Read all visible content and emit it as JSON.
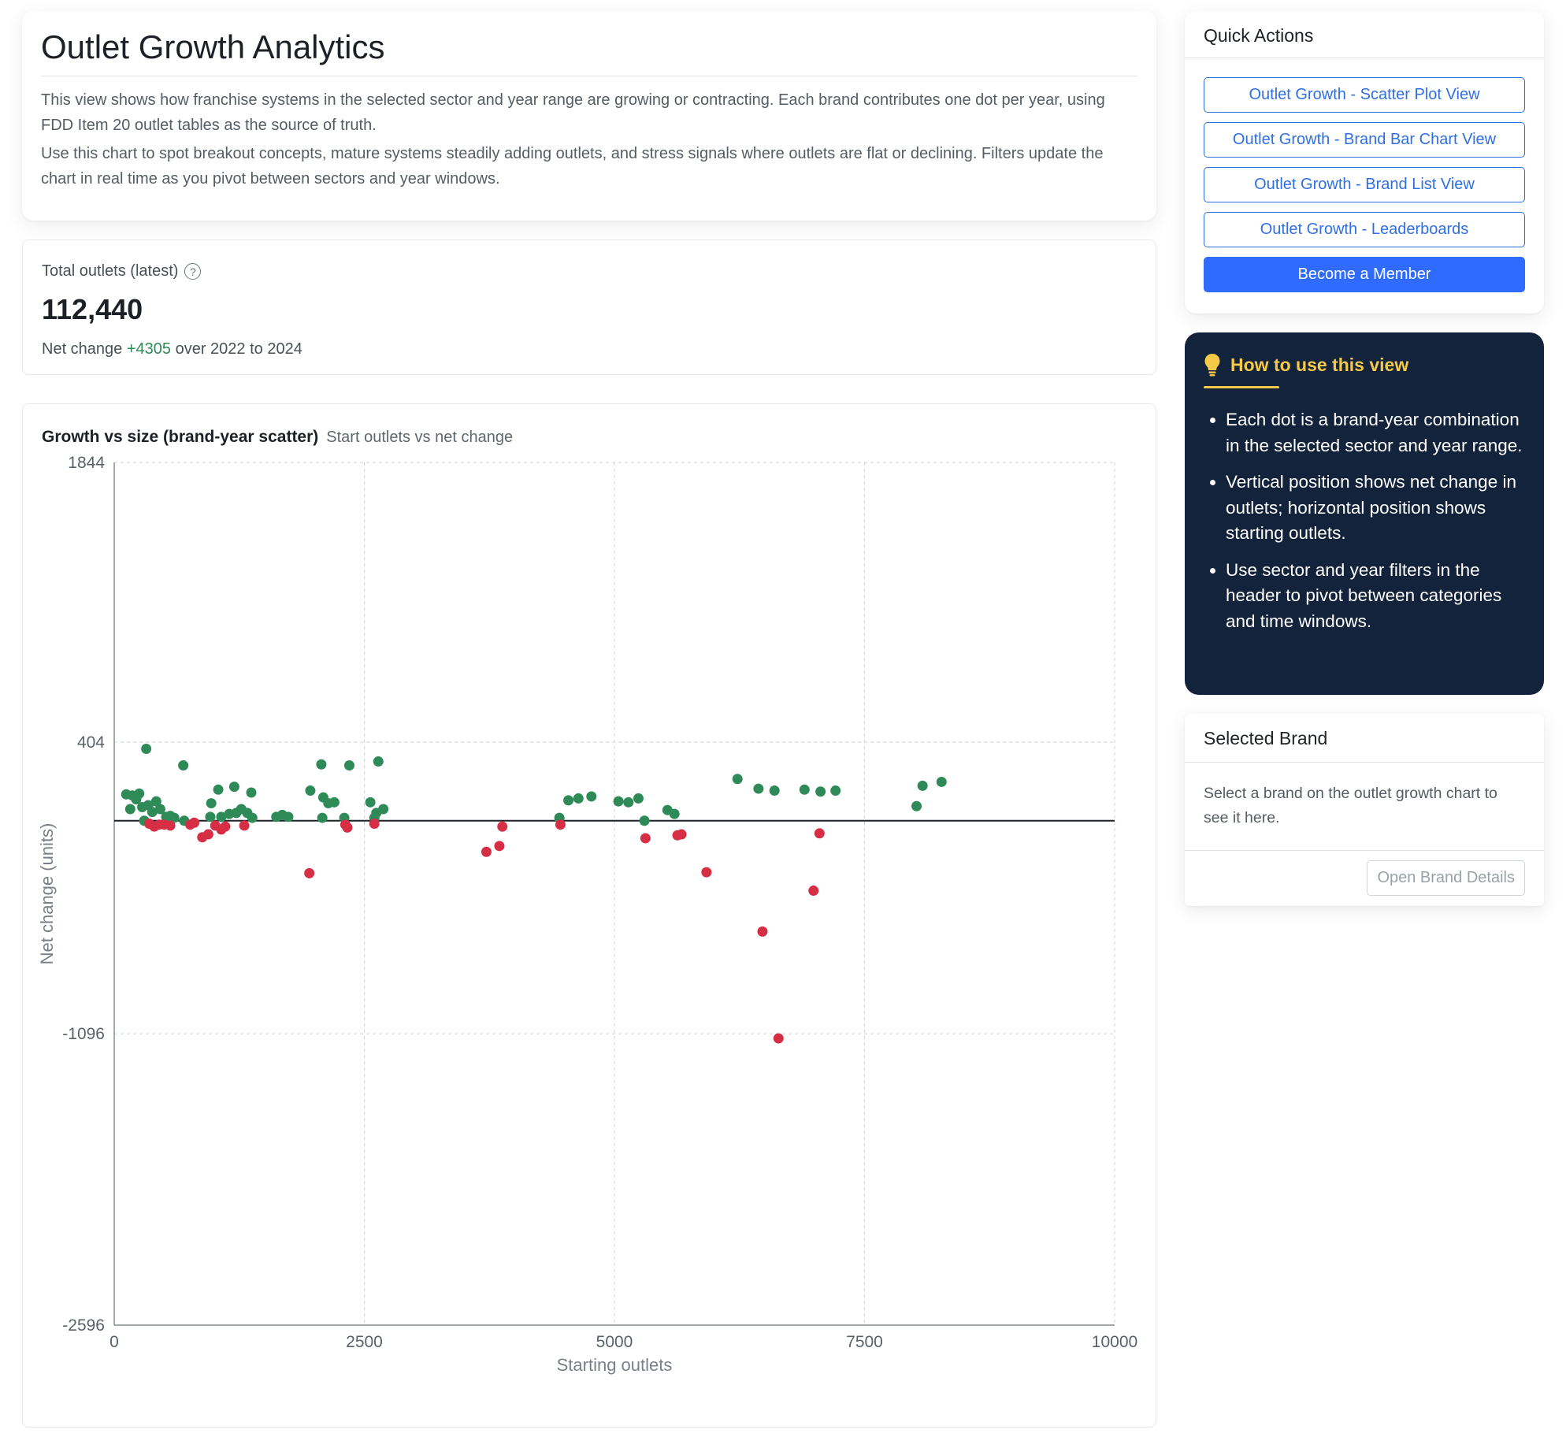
{
  "header": {
    "title": "Outlet Growth Analytics",
    "para1": "This view shows how franchise systems in the selected sector and year range are growing or contracting. Each brand contributes one dot per year, using FDD Item 20 outlet tables as the source of truth.",
    "para2": "Use this chart to spot breakout concepts, mature systems steadily adding outlets, and stress signals where outlets are flat or declining. Filters update the chart in real time as you pivot between sectors and year windows."
  },
  "kpi": {
    "label": "Total outlets (latest)",
    "value": "112,440",
    "net_prefix": "Net change",
    "net_value": "+4305",
    "net_suffix": "over 2022 to 2024"
  },
  "chart_panel": {
    "title": "Growth vs size (brand-year scatter)",
    "subtitle": "Start outlets vs net change"
  },
  "chart_data": {
    "type": "scatter",
    "xlabel": "Starting outlets",
    "ylabel": "Net change (units)",
    "xlim": [
      0,
      10000
    ],
    "ylim": [
      -2596,
      1844
    ],
    "xticks": [
      0,
      2500,
      5000,
      7500,
      10000
    ],
    "yticks": [
      -2596,
      -1096,
      404,
      1844
    ],
    "grid": true,
    "colors": {
      "positive": "#2e8b57",
      "negative": "#d62f45"
    },
    "points": [
      [
        120,
        136
      ],
      [
        180,
        130
      ],
      [
        250,
        140
      ],
      [
        320,
        370
      ],
      [
        160,
        60
      ],
      [
        220,
        110
      ],
      [
        280,
        70
      ],
      [
        340,
        80
      ],
      [
        380,
        45
      ],
      [
        420,
        100
      ],
      [
        460,
        60
      ],
      [
        520,
        20
      ],
      [
        560,
        25
      ],
      [
        600,
        15
      ],
      [
        690,
        285
      ],
      [
        1040,
        160
      ],
      [
        1200,
        175
      ],
      [
        1370,
        145
      ],
      [
        970,
        90
      ],
      [
        960,
        20
      ],
      [
        1070,
        20
      ],
      [
        1150,
        35
      ],
      [
        1220,
        40
      ],
      [
        1270,
        60
      ],
      [
        1330,
        40
      ],
      [
        1380,
        15
      ],
      [
        1620,
        20
      ],
      [
        1680,
        30
      ],
      [
        1740,
        20
      ],
      [
        1960,
        155
      ],
      [
        2070,
        290
      ],
      [
        2090,
        120
      ],
      [
        2140,
        90
      ],
      [
        2200,
        95
      ],
      [
        2350,
        285
      ],
      [
        2080,
        15
      ],
      [
        2300,
        15
      ],
      [
        2640,
        305
      ],
      [
        2560,
        95
      ],
      [
        2620,
        40
      ],
      [
        2690,
        60
      ],
      [
        2600,
        15
      ],
      [
        4450,
        15
      ],
      [
        4540,
        105
      ],
      [
        4640,
        115
      ],
      [
        4770,
        125
      ],
      [
        5040,
        100
      ],
      [
        5140,
        95
      ],
      [
        5240,
        115
      ],
      [
        5530,
        55
      ],
      [
        5600,
        35
      ],
      [
        6230,
        215
      ],
      [
        6440,
        165
      ],
      [
        6600,
        155
      ],
      [
        6900,
        160
      ],
      [
        7060,
        150
      ],
      [
        7210,
        155
      ],
      [
        8020,
        75
      ],
      [
        8080,
        180
      ],
      [
        8270,
        200
      ],
      [
        300,
        0
      ],
      [
        350,
        -15
      ],
      [
        400,
        -30
      ],
      [
        450,
        -20
      ],
      [
        500,
        -20
      ],
      [
        560,
        -25
      ],
      [
        700,
        0
      ],
      [
        760,
        -20
      ],
      [
        800,
        -10
      ],
      [
        880,
        -85
      ],
      [
        940,
        -70
      ],
      [
        1010,
        -25
      ],
      [
        1070,
        -45
      ],
      [
        1110,
        -30
      ],
      [
        1300,
        -25
      ],
      [
        1950,
        -270
      ],
      [
        2310,
        -20
      ],
      [
        2330,
        -35
      ],
      [
        2600,
        -15
      ],
      [
        3720,
        -160
      ],
      [
        3850,
        -130
      ],
      [
        3880,
        -30
      ],
      [
        4460,
        -20
      ],
      [
        5300,
        0
      ],
      [
        5310,
        -90
      ],
      [
        5630,
        -75
      ],
      [
        5670,
        -70
      ],
      [
        5920,
        -265
      ],
      [
        6480,
        -570
      ],
      [
        6640,
        -1120
      ],
      [
        6990,
        -360
      ],
      [
        7050,
        -65
      ]
    ]
  }
}
